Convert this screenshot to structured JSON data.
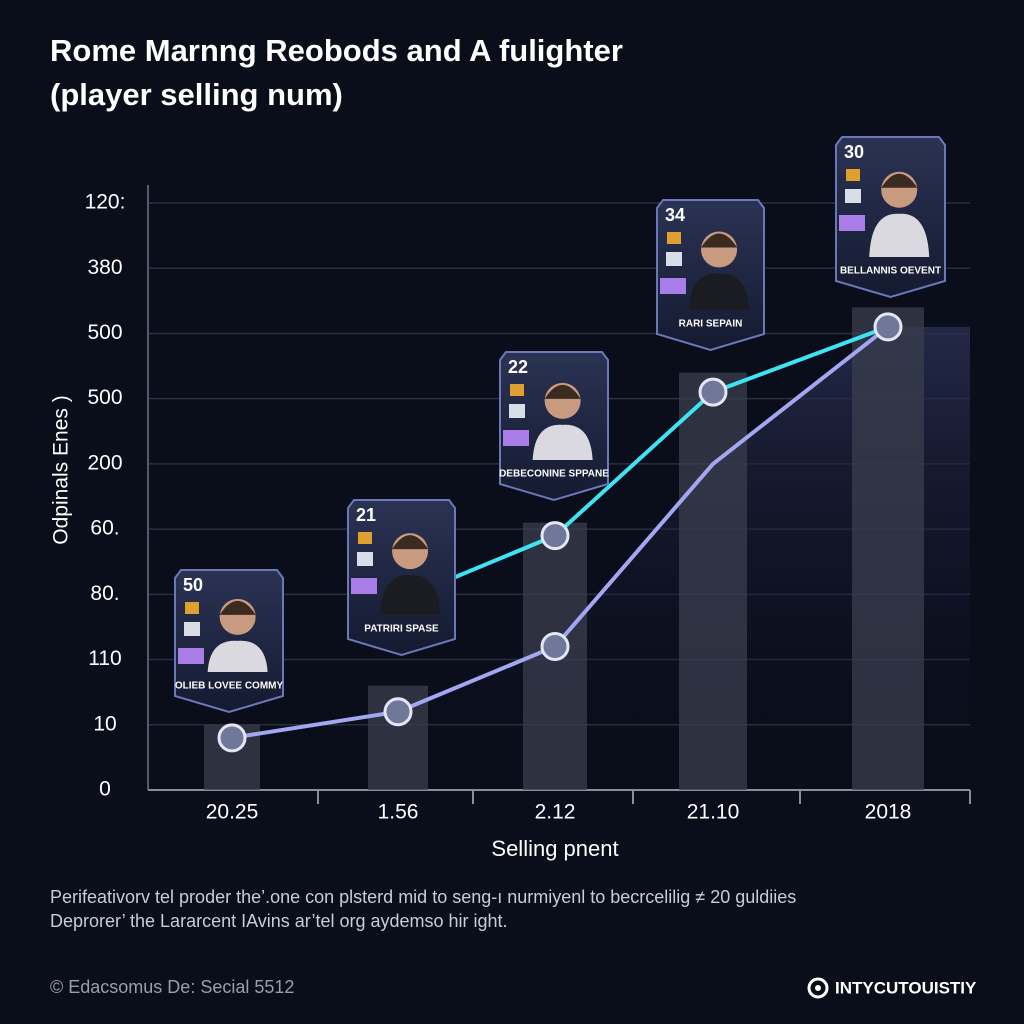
{
  "chart_data": {
    "type": "line",
    "title": "Rome Marnng Reobods and A fulighter",
    "subtitle": "(player selling num)",
    "y_label": "Odpinals Enes )",
    "x_label": "Selling pnent",
    "y_tick_labels": [
      "0",
      "10",
      "110",
      "80.",
      "60.",
      "200",
      "500",
      "500",
      "380",
      "120:"
    ],
    "ylim": [
      0,
      9
    ],
    "grid": true,
    "categories": [
      "20.25",
      "1.56",
      "2.12",
      "21.10",
      "2018"
    ],
    "bar_color": "#3a3d4e",
    "bar_values": [
      1.0,
      1.6,
      4.1,
      6.4,
      7.4
    ],
    "series": [
      {
        "color": "#a3a6f0",
        "values": [
          0.8,
          1.2,
          2.2,
          5.0,
          7.1
        ]
      },
      {
        "color": "#3fe3f2",
        "values": [
          null,
          2.9,
          3.9,
          6.1,
          7.1
        ]
      }
    ],
    "cards": [
      {
        "number": "50",
        "name": "OLIEB LOVEE COMMY"
      },
      {
        "number": "21",
        "name": "PATRIRI SPASE"
      },
      {
        "number": "22",
        "name": "DEBECONINE SPPANE"
      },
      {
        "number": "34",
        "name": "RARI SEPAIN"
      },
      {
        "number": "30",
        "name": "BELLANNIS OEVENT"
      }
    ],
    "caption": [
      "Perifeativorv tel proder the’.one con plsterd mid to seng-ı nurmiyenl to becrcelilig ≠ 20 guldiies",
      "Deprorer’ the Lararcent IAvins ar’tel org aydemso hir ight."
    ],
    "footer_left": "© Edacsomus De: Secial 5512",
    "footer_right": "INTYCUTOUISTIY"
  }
}
